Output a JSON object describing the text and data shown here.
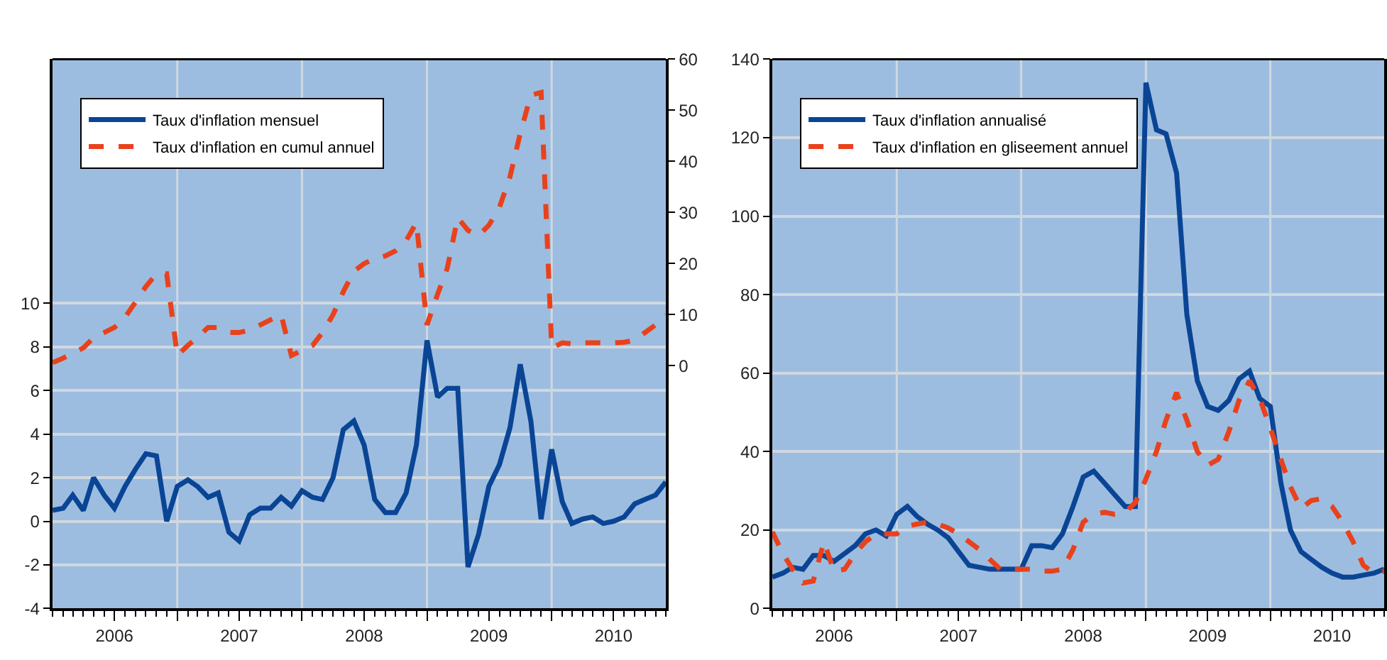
{
  "chart_data": [
    {
      "type": "line",
      "x": [
        "2006-01",
        "2006-02",
        "2006-03",
        "2006-04",
        "2006-05",
        "2006-06",
        "2006-07",
        "2006-08",
        "2006-09",
        "2006-10",
        "2006-11",
        "2006-12",
        "2007-01",
        "2007-02",
        "2007-03",
        "2007-04",
        "2007-05",
        "2007-06",
        "2007-07",
        "2007-08",
        "2007-09",
        "2007-10",
        "2007-11",
        "2007-12",
        "2008-01",
        "2008-02",
        "2008-03",
        "2008-04",
        "2008-05",
        "2008-06",
        "2008-07",
        "2008-08",
        "2008-09",
        "2008-10",
        "2008-11",
        "2008-12",
        "2009-01",
        "2009-02",
        "2009-03",
        "2009-04",
        "2009-05",
        "2009-06",
        "2009-07",
        "2009-08",
        "2009-09",
        "2009-10",
        "2009-11",
        "2009-12",
        "2010-01",
        "2010-02",
        "2010-03",
        "2010-04",
        "2010-05",
        "2010-06",
        "2010-07",
        "2010-08",
        "2010-09",
        "2010-10",
        "2010-11",
        "2010-12"
      ],
      "series": [
        {
          "name": "Taux d'inflation mensuel",
          "color": "#0a4595",
          "line_style": "solid",
          "values": [
            0.5,
            0.6,
            1.2,
            0.5,
            2.0,
            1.2,
            0.6,
            1.6,
            2.4,
            3.1,
            3.0,
            0.0,
            1.6,
            1.9,
            1.6,
            1.1,
            1.3,
            -0.5,
            -0.9,
            0.3,
            0.6,
            0.6,
            1.1,
            0.7,
            1.4,
            1.1,
            1.0,
            2.0,
            4.2,
            4.6,
            3.5,
            1.0,
            0.4,
            0.4,
            1.3,
            3.5,
            8.3,
            5.7,
            6.1,
            6.1,
            -2.1,
            -0.6,
            1.6,
            2.6,
            4.3,
            7.2,
            4.6,
            0.1,
            3.3,
            0.9,
            -0.1,
            0.1,
            0.2,
            -0.1,
            0.0,
            0.2,
            0.8,
            1.0,
            1.2,
            1.8
          ]
        },
        {
          "name": "Taux d'inflation en cumul annuel",
          "color": "#e8421c",
          "line_style": "dashed",
          "axis": "y2",
          "values": [
            0.6,
            1.5,
            2.5,
            3.5,
            5.5,
            6.5,
            7.5,
            9.5,
            12.5,
            15.5,
            18,
            18,
            2,
            4,
            5.5,
            7.5,
            7.5,
            6.5,
            6.5,
            7,
            8,
            9,
            10,
            2,
            3,
            4,
            6.5,
            10,
            14.5,
            18.5,
            20,
            21,
            21.5,
            22.5,
            24.5,
            28,
            8,
            14,
            19,
            29,
            26.5,
            25.5,
            27.5,
            31,
            37,
            45.5,
            53,
            53.5,
            3.5,
            4.5,
            4.3,
            4.5,
            4.5,
            4.5,
            4.5,
            4.6,
            5,
            6.5,
            8,
            10
          ]
        }
      ],
      "xlim": [
        "2006-01",
        "2010-12"
      ],
      "xticks": [
        {
          "value": "2007-01",
          "label": null
        },
        {
          "value": "2008-01",
          "label": null
        },
        {
          "value": "2009-01",
          "label": null
        },
        {
          "value": "2010-01",
          "label": null
        },
        {
          "value": "2006-07",
          "label": "2006"
        },
        {
          "value": "2007-07",
          "label": "2007"
        },
        {
          "value": "2008-07",
          "label": "2008"
        },
        {
          "value": "2009-07",
          "label": "2009"
        },
        {
          "value": "2010-07",
          "label": "2010"
        }
      ],
      "ylim": [
        -4,
        21.2
      ],
      "yticks": [
        -4,
        -2,
        0,
        2,
        4,
        6,
        8,
        10
      ],
      "y2lim": [
        -47.5,
        60
      ],
      "y2ticks": [
        0,
        10,
        20,
        30,
        40,
        50,
        60
      ],
      "grid": true,
      "legend": "top left",
      "marker": "none"
    },
    {
      "type": "line",
      "x": [
        "2006-01",
        "2006-02",
        "2006-03",
        "2006-04",
        "2006-05",
        "2006-06",
        "2006-07",
        "2006-08",
        "2006-09",
        "2006-10",
        "2006-11",
        "2006-12",
        "2007-01",
        "2007-02",
        "2007-03",
        "2007-04",
        "2007-05",
        "2007-06",
        "2007-07",
        "2007-08",
        "2007-09",
        "2007-10",
        "2007-11",
        "2007-12",
        "2008-01",
        "2008-02",
        "2008-03",
        "2008-04",
        "2008-05",
        "2008-06",
        "2008-07",
        "2008-08",
        "2008-09",
        "2008-10",
        "2008-11",
        "2008-12",
        "2009-01",
        "2009-02",
        "2009-03",
        "2009-04",
        "2009-05",
        "2009-06",
        "2009-07",
        "2009-08",
        "2009-09",
        "2009-10",
        "2009-11",
        "2009-12",
        "2010-01",
        "2010-02",
        "2010-03",
        "2010-04",
        "2010-05",
        "2010-06",
        "2010-07",
        "2010-08",
        "2010-09",
        "2010-10",
        "2010-11",
        "2010-12"
      ],
      "series": [
        {
          "name": "Taux d'inflation annualisé",
          "color": "#0a4595",
          "line_style": "solid",
          "values": [
            8,
            9,
            10.5,
            10,
            13.5,
            13.5,
            12,
            14,
            16,
            19,
            20,
            18.5,
            24,
            26,
            23.5,
            21.5,
            20,
            18,
            14.5,
            11,
            10.5,
            10,
            10,
            10,
            10,
            16,
            16,
            15.5,
            19,
            26,
            33.5,
            35,
            32,
            29,
            26,
            26,
            134,
            122,
            121,
            111,
            75,
            58,
            51.5,
            50.5,
            53,
            58.5,
            60.5,
            53.5,
            51.5,
            32,
            20,
            14.5,
            12.5,
            10.5,
            9,
            8,
            8,
            8.5,
            9,
            10
          ]
        },
        {
          "name": "Taux d'inflation en gliseement annuel",
          "color": "#e8421c",
          "line_style": "dashed",
          "values": [
            19.5,
            14,
            10,
            6.5,
            7,
            17,
            9.5,
            10,
            14,
            17,
            19,
            19,
            19,
            21,
            21.5,
            22,
            21.5,
            20.5,
            19,
            17,
            15,
            12.5,
            10,
            10,
            10,
            10,
            9.5,
            9.5,
            10,
            15,
            22,
            24,
            24.5,
            24,
            24.5,
            27,
            33,
            40,
            48,
            55,
            48,
            40,
            36.5,
            38,
            45,
            53,
            58,
            53.5,
            46,
            38,
            31,
            25.5,
            27.5,
            28,
            26,
            22,
            17,
            11,
            9,
            9.5
          ]
        }
      ],
      "xlim": [
        "2006-01",
        "2010-12"
      ],
      "xticks": [
        {
          "value": "2007-01",
          "label": null
        },
        {
          "value": "2008-01",
          "label": null
        },
        {
          "value": "2009-01",
          "label": null
        },
        {
          "value": "2010-01",
          "label": null
        },
        {
          "value": "2006-07",
          "label": "2006"
        },
        {
          "value": "2007-07",
          "label": "2007"
        },
        {
          "value": "2008-07",
          "label": "2008"
        },
        {
          "value": "2009-07",
          "label": "2009"
        },
        {
          "value": "2010-07",
          "label": "2010"
        }
      ],
      "ylim": [
        0,
        140
      ],
      "yticks": [
        0,
        20,
        40,
        60,
        80,
        100,
        120,
        140
      ],
      "grid": true,
      "legend": "top left",
      "marker": "none"
    }
  ]
}
